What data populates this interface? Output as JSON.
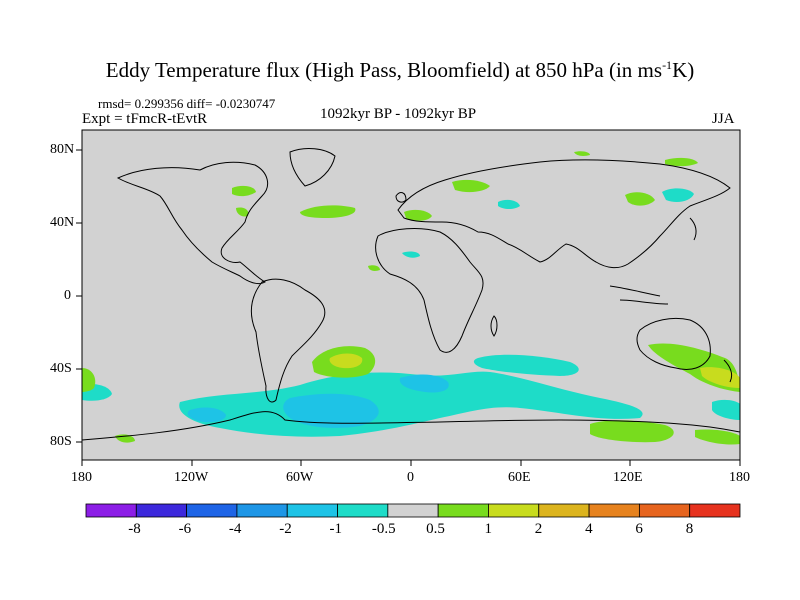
{
  "title": {
    "main": "Eddy Temperature flux (High Pass, Bloomfield) at 850 hPa (in ms",
    "sup": "-1",
    "unit_tail": "K)"
  },
  "info": {
    "rmsd_diff": "rmsd= 0.299356 diff= -0.0230747",
    "experiment": "Expt = tFmcR-tEvtR",
    "period": "1092kyr BP - 1092kyr BP",
    "season": "JJA"
  },
  "axes": {
    "lat_labels": [
      "80N",
      "40N",
      "0",
      "40S",
      "80S"
    ],
    "lon_labels": [
      "180",
      "120W",
      "60W",
      "0",
      "60E",
      "120E",
      "180"
    ]
  },
  "colorbar": {
    "labels": [
      "-8",
      "-6",
      "-4",
      "-2",
      "-1",
      "-0.5",
      "0.5",
      "1",
      "2",
      "4",
      "6",
      "8"
    ],
    "colors": [
      "#8c1ee6",
      "#3c28dc",
      "#1e64e6",
      "#1e96e6",
      "#1ec3e6",
      "#1edcc8",
      "#d2d2d2",
      "#78dc1e",
      "#c8dc1e",
      "#dcb41e",
      "#e6821e",
      "#e6641e",
      "#e6321e"
    ]
  },
  "map": {
    "background_color": "#d2d2d2",
    "projection": "cylindrical equidistant"
  }
}
